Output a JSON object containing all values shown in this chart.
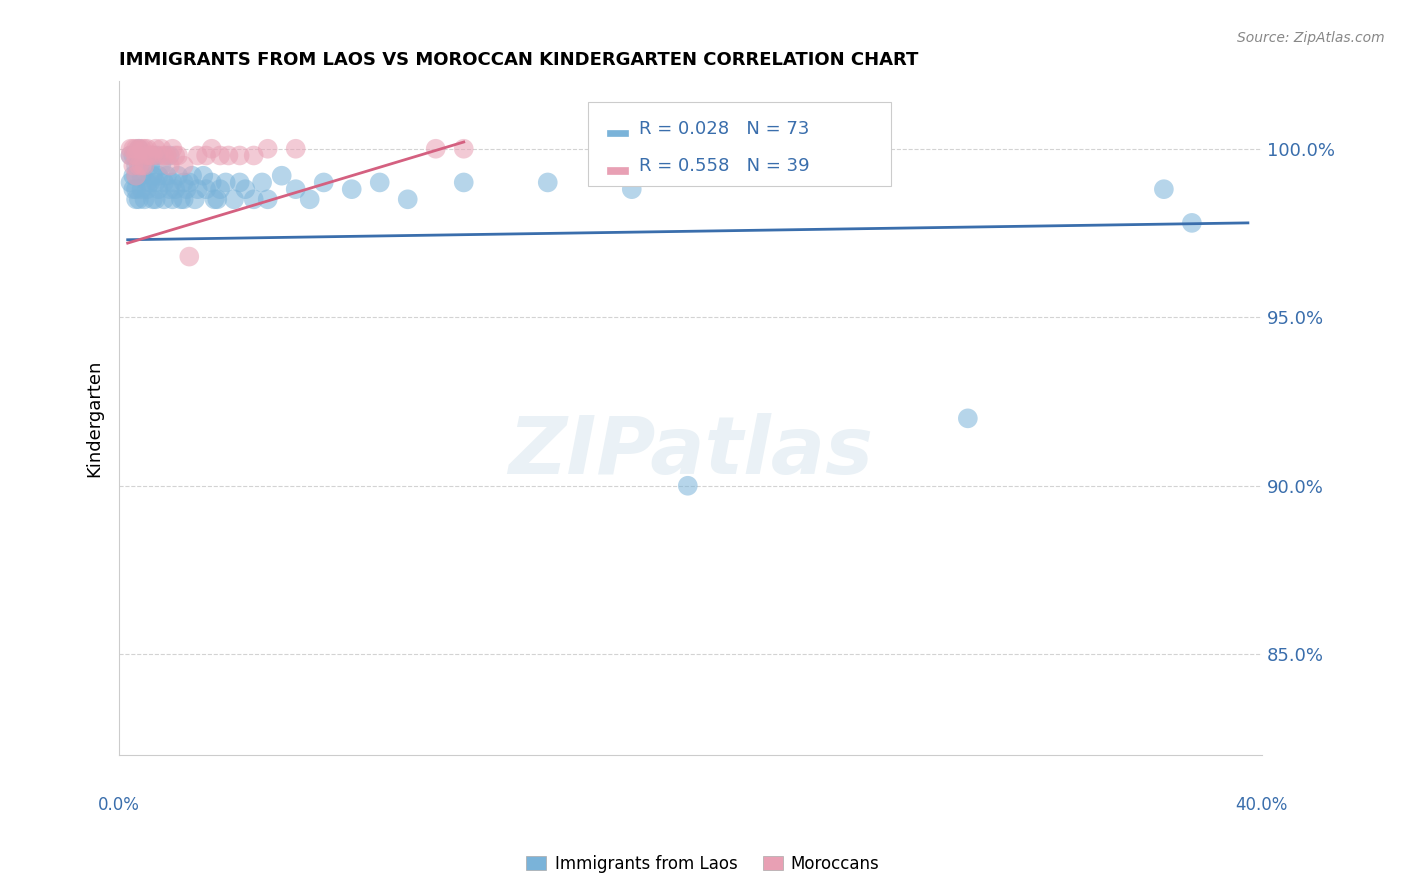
{
  "title": "IMMIGRANTS FROM LAOS VS MOROCCAN KINDERGARTEN CORRELATION CHART",
  "source": "Source: ZipAtlas.com",
  "ylabel": "Kindergarten",
  "legend_label1": "Immigrants from Laos",
  "legend_label2": "Moroccans",
  "legend_r1": "R = 0.028",
  "legend_n1": "N = 73",
  "legend_r2": "R = 0.558",
  "legend_n2": "N = 39",
  "watermark": "ZIPatlas",
  "blue_color": "#7ab3d9",
  "pink_color": "#e8a0b4",
  "blue_line_color": "#3a6eac",
  "pink_line_color": "#d46080",
  "blue_x": [
    0.001,
    0.001,
    0.002,
    0.002,
    0.002,
    0.003,
    0.003,
    0.003,
    0.003,
    0.004,
    0.004,
    0.004,
    0.005,
    0.005,
    0.005,
    0.006,
    0.006,
    0.007,
    0.007,
    0.008,
    0.008,
    0.009,
    0.009,
    0.01,
    0.01,
    0.01,
    0.011,
    0.011,
    0.012,
    0.013,
    0.013,
    0.014,
    0.015,
    0.015,
    0.016,
    0.016,
    0.017,
    0.018,
    0.019,
    0.02,
    0.02,
    0.021,
    0.022,
    0.023,
    0.024,
    0.025,
    0.027,
    0.028,
    0.03,
    0.031,
    0.032,
    0.033,
    0.035,
    0.038,
    0.04,
    0.042,
    0.045,
    0.048,
    0.05,
    0.055,
    0.06,
    0.065,
    0.07,
    0.08,
    0.09,
    0.1,
    0.12,
    0.15,
    0.18,
    0.2,
    0.3,
    0.37,
    0.38
  ],
  "blue_y": [
    0.998,
    0.99,
    0.998,
    0.988,
    0.992,
    0.995,
    0.985,
    0.992,
    0.988,
    1.0,
    0.995,
    0.985,
    0.998,
    0.992,
    0.988,
    0.995,
    0.985,
    0.99,
    0.988,
    0.995,
    0.99,
    0.985,
    0.992,
    0.998,
    0.99,
    0.985,
    0.992,
    0.988,
    0.995,
    0.99,
    0.985,
    0.992,
    0.998,
    0.988,
    0.985,
    0.99,
    0.988,
    0.992,
    0.985,
    0.99,
    0.985,
    0.988,
    0.99,
    0.992,
    0.985,
    0.988,
    0.992,
    0.988,
    0.99,
    0.985,
    0.985,
    0.988,
    0.99,
    0.985,
    0.99,
    0.988,
    0.985,
    0.99,
    0.985,
    0.992,
    0.988,
    0.985,
    0.99,
    0.988,
    0.99,
    0.985,
    0.99,
    0.99,
    0.988,
    0.9,
    0.92,
    0.988,
    0.978
  ],
  "pink_x": [
    0.001,
    0.001,
    0.002,
    0.002,
    0.003,
    0.003,
    0.003,
    0.004,
    0.004,
    0.005,
    0.005,
    0.006,
    0.006,
    0.007,
    0.007,
    0.008,
    0.009,
    0.01,
    0.011,
    0.012,
    0.013,
    0.014,
    0.015,
    0.016,
    0.017,
    0.018,
    0.02,
    0.022,
    0.025,
    0.028,
    0.03,
    0.033,
    0.036,
    0.04,
    0.045,
    0.05,
    0.06,
    0.11,
    0.12
  ],
  "pink_y": [
    1.0,
    0.998,
    1.0,
    0.995,
    1.0,
    0.998,
    0.992,
    1.0,
    0.995,
    1.0,
    0.995,
    1.0,
    0.995,
    1.0,
    0.998,
    0.998,
    0.998,
    1.0,
    0.998,
    1.0,
    0.998,
    0.998,
    0.995,
    1.0,
    0.998,
    0.998,
    0.995,
    0.968,
    0.998,
    0.998,
    1.0,
    0.998,
    0.998,
    0.998,
    0.998,
    1.0,
    1.0,
    1.0,
    1.0
  ],
  "blue_line_x0": 0.0,
  "blue_line_x1": 0.4,
  "blue_line_y0": 0.973,
  "blue_line_y1": 0.978,
  "pink_line_x0": 0.0,
  "pink_line_x1": 0.12,
  "pink_line_y0": 0.972,
  "pink_line_y1": 1.002,
  "yticks": [
    0.85,
    0.9,
    0.95,
    1.0
  ],
  "ytick_labels": [
    "85.0%",
    "90.0%",
    "95.0%",
    "100.0%"
  ],
  "xlim": [
    -0.003,
    0.405
  ],
  "ylim": [
    0.82,
    1.02
  ]
}
